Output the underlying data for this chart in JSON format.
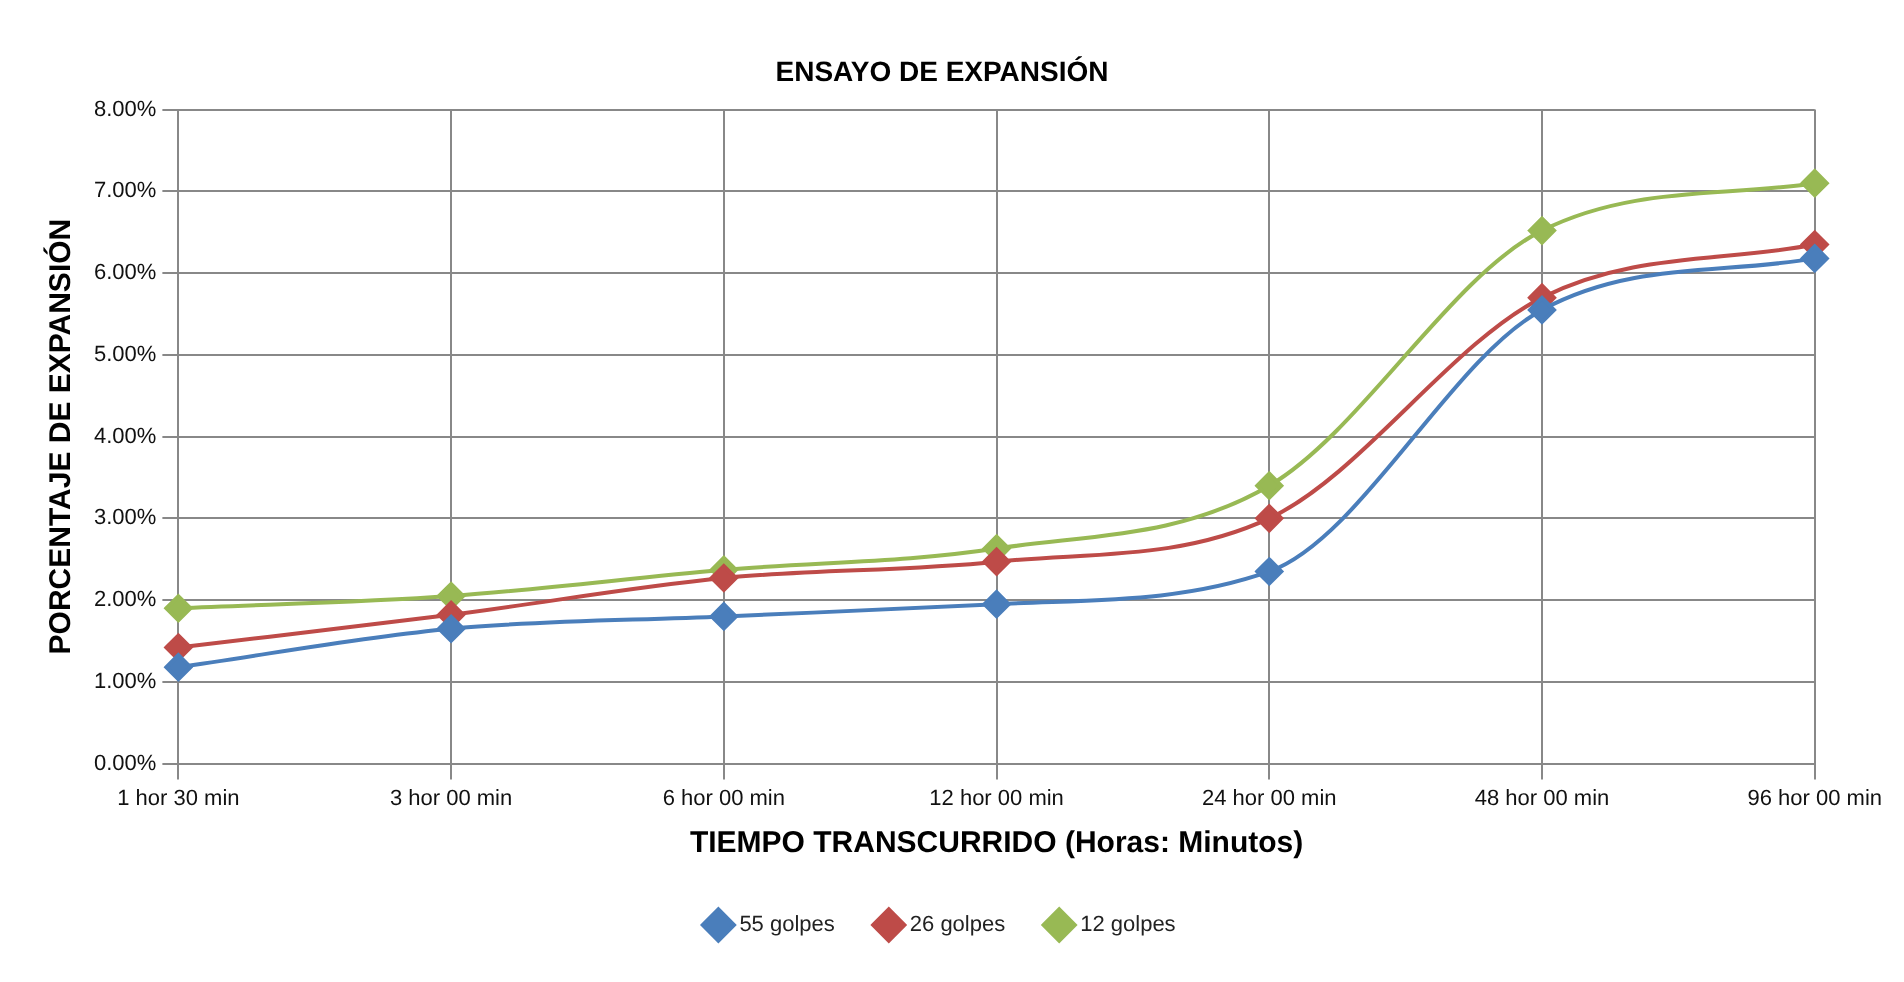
{
  "chart_data": {
    "type": "line",
    "title": "ENSAYO DE EXPANSIÓN",
    "xlabel": "TIEMPO TRANSCURRIDO (Horas: Minutos)",
    "ylabel": "PORCENTAJE DE EXPANSIÓN",
    "categories": [
      "1 hor 30 min",
      "3 hor 00 min",
      "6 hor 00 min",
      "12 hor 00 min",
      "24 hor 00 min",
      "48 hor 00 min",
      "96 hor 00 min"
    ],
    "series": [
      {
        "name": "55 golpes",
        "color": "#4a7ebb",
        "values": [
          1.18,
          1.65,
          1.8,
          1.95,
          2.35,
          5.55,
          6.18
        ]
      },
      {
        "name": "26 golpes",
        "color": "#be4b48",
        "values": [
          1.42,
          1.82,
          2.27,
          2.47,
          3.0,
          5.7,
          6.35
        ]
      },
      {
        "name": "12 golpes",
        "color": "#98b954",
        "values": [
          1.9,
          2.05,
          2.37,
          2.63,
          3.4,
          6.52,
          7.1
        ]
      }
    ],
    "ylim": [
      0,
      8
    ],
    "yticks": [
      {
        "value": 0,
        "label": "0.00%"
      },
      {
        "value": 1,
        "label": "1.00%"
      },
      {
        "value": 2,
        "label": "2.00%"
      },
      {
        "value": 3,
        "label": "3.00%"
      },
      {
        "value": 4,
        "label": "4.00%"
      },
      {
        "value": 5,
        "label": "5.00%"
      },
      {
        "value": 6,
        "label": "6.00%"
      },
      {
        "value": 7,
        "label": "7.00%"
      },
      {
        "value": 8,
        "label": "8.00%"
      }
    ],
    "grid": true,
    "legend": "bottom",
    "marker": "diamond"
  }
}
